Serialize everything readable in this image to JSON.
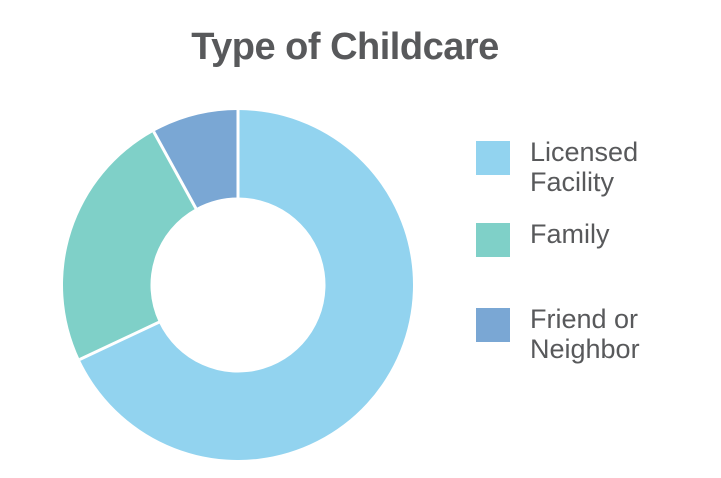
{
  "title": {
    "text": "Type of Childcare",
    "color": "#58595B"
  },
  "chart_data": {
    "type": "pie",
    "subtype": "donut",
    "title": "Type of Childcare",
    "categories": [
      "Licensed Facility",
      "Family",
      "Friend or Neighbor"
    ],
    "values": [
      68,
      24,
      8
    ],
    "unit": "%",
    "colors": [
      "#92D3EF",
      "#7FD0C8",
      "#7AA7D4"
    ],
    "start_angle_deg": 0,
    "direction": "clockwise",
    "inner_radius_ratio": 0.5,
    "separator_color": "#FFFFFF",
    "legend_position": "right",
    "legend": [
      {
        "label": "Licensed Facility",
        "color": "#92D3EF"
      },
      {
        "label": "Family",
        "color": "#7FD0C8"
      },
      {
        "label": "Friend or Neighbor",
        "color": "#7AA7D4"
      }
    ]
  }
}
